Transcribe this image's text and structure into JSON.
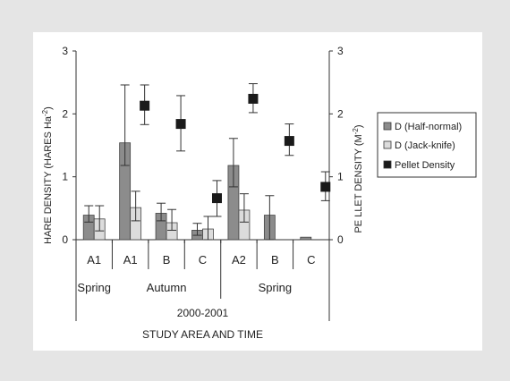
{
  "chart_data": {
    "type": "bar",
    "categories": [
      "A1",
      "A1",
      "B",
      "C",
      "A2",
      "B",
      "C"
    ],
    "seasons": [
      "Spring",
      "Autumn",
      "Spring"
    ],
    "period": "2000-2001",
    "xlabel": "STUDY AREA AND TIME",
    "ylabel_left": "HARE  DENSITY (HARES Ha",
    "ylabel_left_exp": "-2",
    "ylabel_left_close": ")",
    "ylabel_right": "PE LLET  DENSITY  (M",
    "ylabel_right_exp": "-2",
    "ylabel_right_close": ")",
    "ylim": [
      0,
      3
    ],
    "yticks": [
      "0",
      "1",
      "2",
      "3"
    ],
    "grid": false,
    "legend_position": "right",
    "series": [
      {
        "name": "D (Half-normal)",
        "kind": "bar",
        "color": "#8c8c8c",
        "values": [
          0.39,
          1.54,
          0.42,
          0.15,
          1.18,
          0.39,
          0.04
        ],
        "err_low": [
          0.28,
          1.18,
          0.3,
          0.07,
          0.84,
          0.0,
          null
        ],
        "err_high": [
          0.54,
          2.46,
          0.58,
          0.26,
          1.61,
          0.7,
          null
        ]
      },
      {
        "name": "D (Jack-knife)",
        "kind": "bar",
        "color": "#dcdcdc",
        "values": [
          0.33,
          0.51,
          0.27,
          0.17,
          0.47,
          null,
          null
        ],
        "err_low": [
          0.14,
          0.3,
          0.15,
          0.0,
          0.28,
          null,
          null
        ],
        "err_high": [
          0.54,
          0.77,
          0.48,
          0.37,
          0.73,
          null,
          null
        ]
      },
      {
        "name": "Pellet Density",
        "kind": "marker",
        "color": "#1a1a1a",
        "values": [
          null,
          2.13,
          1.84,
          0.66,
          2.24,
          1.57,
          0.84
        ],
        "err_low": [
          null,
          1.83,
          1.41,
          0.37,
          2.02,
          1.34,
          0.62
        ],
        "err_high": [
          null,
          2.46,
          2.29,
          0.94,
          2.48,
          1.84,
          1.08
        ]
      }
    ]
  }
}
